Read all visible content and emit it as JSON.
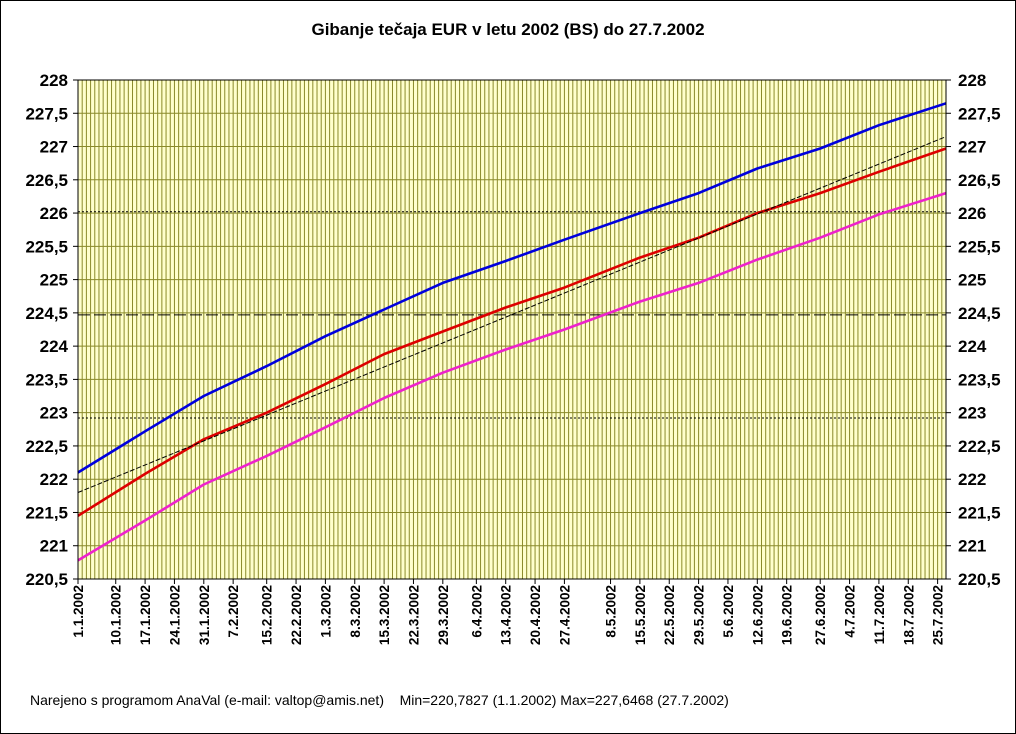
{
  "chart_data": {
    "type": "line",
    "title": "Gibanje tečaja EUR v letu 2002 (BS) do 27.7.2002",
    "ylim": [
      220.5,
      228
    ],
    "y_ticks": [
      "220,5",
      "221",
      "221,5",
      "222",
      "222,5",
      "223",
      "223,5",
      "224",
      "224,5",
      "225",
      "225,5",
      "226",
      "226,5",
      "227",
      "227,5",
      "228"
    ],
    "x_range": [
      "1.1.2002",
      "27.7.2002"
    ],
    "x_ticks": [
      "1.1.2002",
      "10.1.2002",
      "17.1.2002",
      "24.1.2002",
      "31.1.2002",
      "7.2.2002",
      "15.2.2002",
      "22.2.2002",
      "1.3.2002",
      "8.3.2002",
      "15.3.2002",
      "22.3.2002",
      "29.3.2002",
      "6.4.2002",
      "13.4.2002",
      "20.4.2002",
      "27.4.2002",
      "8.5.2002",
      "15.5.2002",
      "22.5.2002",
      "29.5.2002",
      "5.6.2002",
      "12.6.2002",
      "19.6.2002",
      "27.6.2002",
      "4.7.2002",
      "11.7.2002",
      "18.7.2002",
      "25.7.2002"
    ],
    "grid": true,
    "reference_lines": [
      {
        "style": "dotted",
        "y": 226.02
      },
      {
        "style": "dashed",
        "y": 224.47
      },
      {
        "style": "dotted",
        "y": 222.92
      }
    ],
    "series": [
      {
        "color": "#0000dd",
        "x": [
          "1.1.2002",
          "17.1.2002",
          "31.1.2002",
          "15.2.2002",
          "1.3.2002",
          "15.3.2002",
          "29.3.2002",
          "13.4.2002",
          "27.4.2002",
          "15.5.2002",
          "29.5.2002",
          "12.6.2002",
          "27.6.2002",
          "11.7.2002",
          "27.7.2002"
        ],
        "values": [
          222.1,
          222.72,
          223.25,
          223.7,
          224.15,
          224.55,
          224.95,
          225.28,
          225.6,
          226.0,
          226.3,
          226.67,
          226.97,
          227.32,
          227.65
        ]
      },
      {
        "color": "#dd0000",
        "x": [
          "1.1.2002",
          "17.1.2002",
          "31.1.2002",
          "15.2.2002",
          "1.3.2002",
          "15.3.2002",
          "29.3.2002",
          "13.4.2002",
          "27.4.2002",
          "15.5.2002",
          "29.5.2002",
          "12.6.2002",
          "27.6.2002",
          "11.7.2002",
          "27.7.2002"
        ],
        "values": [
          221.45,
          222.08,
          222.6,
          223.0,
          223.43,
          223.88,
          224.22,
          224.58,
          224.88,
          225.33,
          225.63,
          226.0,
          226.3,
          226.62,
          226.97
        ]
      },
      {
        "color": "#ee22cc",
        "x": [
          "1.1.2002",
          "17.1.2002",
          "31.1.2002",
          "15.2.2002",
          "1.3.2002",
          "15.3.2002",
          "29.3.2002",
          "13.4.2002",
          "27.4.2002",
          "15.5.2002",
          "29.5.2002",
          "12.6.2002",
          "27.6.2002",
          "11.7.2002",
          "27.7.2002"
        ],
        "values": [
          220.78,
          221.38,
          221.92,
          222.35,
          222.78,
          223.22,
          223.6,
          223.95,
          224.25,
          224.67,
          224.95,
          225.3,
          225.63,
          225.98,
          226.3
        ]
      },
      {
        "color": "#000000",
        "style": "dashed-thin",
        "x": [
          "1.1.2002",
          "27.7.2002"
        ],
        "values": [
          221.8,
          227.15
        ]
      }
    ]
  },
  "footer": {
    "credit": "Narejeno s programom AnaVal (e-mail: valtop@amis.net)",
    "stats": "Min=220,7827 (1.1.2002) Max=227,6468 (27.7.2002)"
  }
}
